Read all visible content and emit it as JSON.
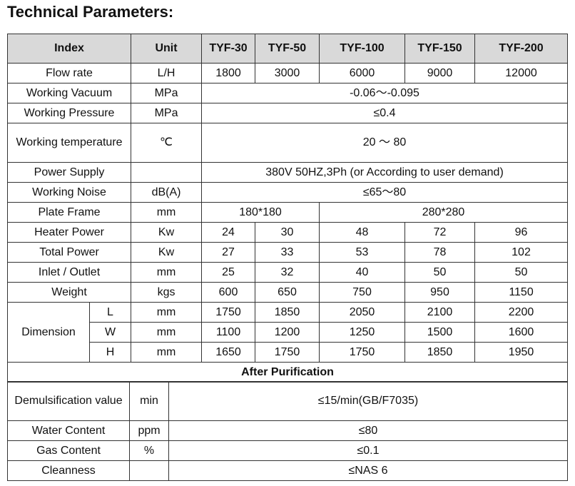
{
  "title": "Technical Parameters:",
  "table": {
    "header": [
      "Index",
      "Unit",
      "TYF-30",
      "TYF-50",
      "TYF-100",
      "TYF-150",
      "TYF-200"
    ],
    "rows": [
      [
        "Flow rate",
        "L/H",
        1800,
        3000,
        6000,
        9000,
        12000
      ],
      [
        "Working Vacuum",
        "MPa",
        "-0.06～-0.095"
      ],
      [
        "Working Pressure",
        "MPa",
        "≤0.4"
      ],
      [
        "Working temperature",
        "℃",
        "20 ～ 80"
      ],
      [
        "Power Supply",
        "380V 50HZ,3Ph (or According to user demand)"
      ],
      [
        "Working Noise",
        "dB(A)",
        "≤65～80"
      ],
      [
        "Plate Frame",
        "mm",
        "180*180",
        "280*280"
      ],
      [
        "Heater Power",
        "Kw",
        24,
        30,
        48,
        72,
        96
      ],
      [
        "Total Power",
        "Kw",
        27,
        33,
        53,
        78,
        102
      ],
      [
        "Inlet / Outlet",
        "mm",
        25,
        32,
        40,
        50,
        50
      ],
      [
        "Weight",
        "kgs",
        600,
        650,
        750,
        950,
        1150
      ]
    ],
    "dimension": {
      "label": "Dimension",
      "rows": [
        [
          "L",
          "mm",
          1750,
          1850,
          2050,
          2100,
          2200
        ],
        [
          "W",
          "mm",
          1100,
          1200,
          1250,
          1500,
          1600
        ],
        [
          "H",
          "mm",
          1650,
          1750,
          1750,
          1850,
          1950
        ]
      ]
    },
    "after_purification": {
      "title": "After Purification",
      "rows": [
        [
          "Demulsification value",
          "min",
          "≤15/min(GB/F7035)"
        ],
        [
          "Water Content",
          "ppm",
          "≤80"
        ],
        [
          "Gas Content",
          "%",
          "≤0.1"
        ],
        [
          "Cleanness",
          "≤NAS 6"
        ]
      ]
    }
  }
}
